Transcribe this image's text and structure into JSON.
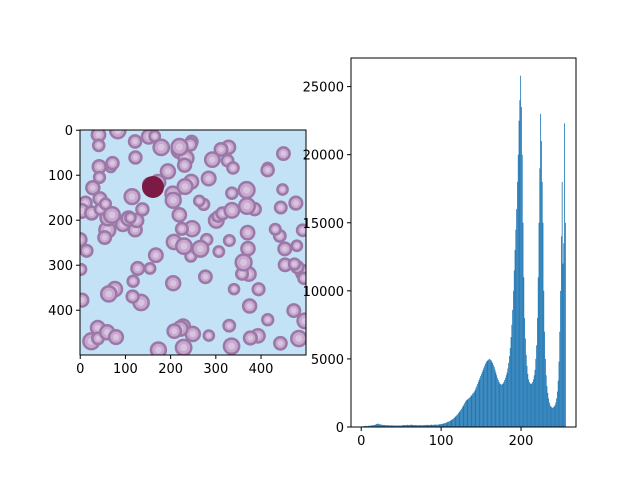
{
  "chart_data": [
    {
      "type": "image",
      "xlim": [
        -0.5,
        499.5
      ],
      "ylim": [
        499.5,
        -0.5
      ],
      "xticks": [
        0,
        100,
        200,
        300,
        400
      ],
      "yticks": [
        0,
        100,
        200,
        300,
        400
      ]
    },
    {
      "type": "histogram",
      "color": "#1f77b4",
      "xlim": [
        -12.8,
        268.8
      ],
      "ylim": [
        0,
        27100
      ],
      "xticks": [
        0,
        100,
        200
      ],
      "yticks": [
        0,
        5000,
        10000,
        15000,
        20000,
        25000
      ],
      "bins": [
        0,
        1,
        2,
        3,
        4,
        5,
        6,
        7,
        8,
        9,
        10,
        11,
        12,
        13,
        14,
        15,
        16,
        17,
        18,
        19,
        20,
        21,
        22,
        23,
        24,
        25,
        26,
        27,
        28,
        29,
        30,
        31,
        32,
        33,
        34,
        35,
        36,
        37,
        38,
        39,
        40,
        41,
        42,
        43,
        44,
        45,
        46,
        47,
        48,
        49,
        50,
        51,
        52,
        53,
        54,
        55,
        56,
        57,
        58,
        59,
        60,
        61,
        62,
        63,
        64,
        65,
        66,
        67,
        68,
        69,
        70,
        71,
        72,
        73,
        74,
        75,
        76,
        77,
        78,
        79,
        80,
        81,
        82,
        83,
        84,
        85,
        86,
        87,
        88,
        89,
        90,
        91,
        92,
        93,
        94,
        95,
        96,
        97,
        98,
        99,
        100,
        101,
        102,
        103,
        104,
        105,
        106,
        107,
        108,
        109,
        110,
        111,
        112,
        113,
        114,
        115,
        116,
        117,
        118,
        119,
        120,
        121,
        122,
        123,
        124,
        125,
        126,
        127,
        128,
        129,
        130,
        131,
        132,
        133,
        134,
        135,
        136,
        137,
        138,
        139,
        140,
        141,
        142,
        143,
        144,
        145,
        146,
        147,
        148,
        149,
        150,
        151,
        152,
        153,
        154,
        155,
        156,
        157,
        158,
        159,
        160,
        161,
        162,
        163,
        164,
        165,
        166,
        167,
        168,
        169,
        170,
        171,
        172,
        173,
        174,
        175,
        176,
        177,
        178,
        179,
        180,
        181,
        182,
        183,
        184,
        185,
        186,
        187,
        188,
        189,
        190,
        191,
        192,
        193,
        194,
        195,
        196,
        197,
        198,
        199,
        200,
        201,
        202,
        203,
        204,
        205,
        206,
        207,
        208,
        209,
        210,
        211,
        212,
        213,
        214,
        215,
        216,
        217,
        218,
        219,
        220,
        221,
        222,
        223,
        224,
        225,
        226,
        227,
        228,
        229,
        230,
        231,
        232,
        233,
        234,
        235,
        236,
        237,
        238,
        239,
        240,
        241,
        242,
        243,
        244,
        245,
        246,
        247,
        248,
        249,
        250,
        251,
        252,
        253,
        254,
        255,
        256
      ],
      "values": [
        30,
        40,
        60,
        50,
        80,
        70,
        90,
        60,
        80,
        100,
        90,
        110,
        100,
        120,
        130,
        150,
        140,
        160,
        200,
        220,
        250,
        230,
        210,
        190,
        180,
        170,
        160,
        150,
        140,
        150,
        140,
        130,
        140,
        120,
        130,
        120,
        110,
        130,
        120,
        110,
        120,
        110,
        100,
        120,
        110,
        100,
        110,
        120,
        100,
        110,
        120,
        130,
        140,
        150,
        140,
        130,
        150,
        160,
        150,
        140,
        150,
        160,
        170,
        160,
        150,
        140,
        150,
        140,
        130,
        140,
        130,
        140,
        120,
        130,
        140,
        130,
        120,
        130,
        140,
        150,
        140,
        150,
        160,
        150,
        140,
        150,
        160,
        170,
        160,
        150,
        160,
        170,
        180,
        170,
        160,
        170,
        180,
        190,
        200,
        210,
        220,
        230,
        250,
        260,
        280,
        300,
        320,
        350,
        380,
        400,
        430,
        460,
        500,
        540,
        580,
        620,
        680,
        740,
        800,
        860,
        930,
        1000,
        1080,
        1160,
        1250,
        1340,
        1440,
        1540,
        1650,
        1760,
        1880,
        1950,
        2000,
        2050,
        2100,
        2150,
        2200,
        2300,
        2350,
        2450,
        2500,
        2600,
        2700,
        2850,
        3000,
        3150,
        3300,
        3450,
        3600,
        3750,
        3900,
        4050,
        4200,
        4350,
        4500,
        4650,
        4750,
        4850,
        4900,
        4950,
        5000,
        4950,
        4900,
        4800,
        4700,
        4550,
        4400,
        4200,
        4000,
        3800,
        3600,
        3450,
        3300,
        3200,
        3150,
        3100,
        3150,
        3200,
        3300,
        3450,
        3600,
        3800,
        4000,
        4300,
        4700,
        5200,
        5800,
        6600,
        7500,
        8600,
        10000,
        11500,
        13000,
        14500,
        16000,
        18000,
        20000,
        22500,
        24000,
        25800,
        23500,
        20000,
        15000,
        11000,
        8000,
        6500,
        5300,
        4500,
        3900,
        3500,
        3300,
        3200,
        3150,
        3200,
        3300,
        3500,
        3800,
        4200,
        5000,
        6000,
        8000,
        11000,
        15000,
        19000,
        23000,
        21000,
        18000,
        15000,
        10000,
        7000,
        5000,
        3800,
        3000,
        2500,
        2100,
        1800,
        1600,
        1500,
        1450,
        1400,
        1450,
        1500,
        1600,
        1800,
        2100,
        2600,
        3400,
        4800,
        7000,
        10000,
        14000,
        18000,
        12000,
        13500,
        22300,
        15000
      ]
    }
  ]
}
